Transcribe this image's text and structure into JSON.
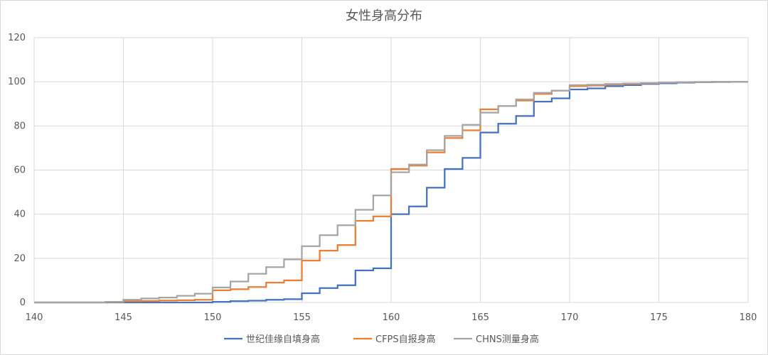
{
  "chart_data": {
    "type": "line",
    "title": "女性身高分布",
    "xlabel": "",
    "ylabel": "",
    "xlim": [
      140,
      180
    ],
    "ylim": [
      0,
      120
    ],
    "x_ticks": [
      140,
      145,
      150,
      155,
      160,
      165,
      170,
      175,
      180
    ],
    "y_ticks": [
      0,
      20,
      40,
      60,
      80,
      100,
      120
    ],
    "grid": true,
    "legend_position": "bottom",
    "step": true,
    "series": [
      {
        "name": "世纪佳缘自填身高",
        "color": "#4472c4",
        "x": [
          140,
          141,
          142,
          143,
          144,
          145,
          146,
          147,
          148,
          149,
          150,
          151,
          152,
          153,
          154,
          155,
          156,
          157,
          158,
          159,
          160,
          161,
          162,
          163,
          164,
          165,
          166,
          167,
          168,
          169,
          170,
          171,
          172,
          173,
          174,
          175,
          176,
          177,
          178,
          179,
          180
        ],
        "values": [
          0,
          0,
          0,
          0,
          0,
          0,
          0,
          0,
          0,
          0,
          0.3,
          0.6,
          0.8,
          1.2,
          1.5,
          4.2,
          6.5,
          7.8,
          14.5,
          15.5,
          40,
          43.5,
          52,
          60.5,
          65.5,
          77,
          81,
          84.5,
          91,
          92.5,
          96.5,
          97,
          98,
          98.5,
          99,
          99.3,
          99.6,
          99.8,
          99.9,
          100,
          100
        ]
      },
      {
        "name": "CFPS自报身高",
        "color": "#ed7d31",
        "x": [
          140,
          141,
          142,
          143,
          144,
          145,
          146,
          147,
          148,
          149,
          150,
          151,
          152,
          153,
          154,
          155,
          156,
          157,
          158,
          159,
          160,
          161,
          162,
          163,
          164,
          165,
          166,
          167,
          168,
          169,
          170,
          171,
          172,
          173,
          174,
          175,
          176,
          177,
          178,
          179,
          180
        ],
        "values": [
          0,
          0,
          0,
          0,
          0.2,
          0.6,
          0.7,
          0.9,
          1,
          1.2,
          5.5,
          6,
          7,
          9,
          10,
          19,
          23.5,
          26,
          37,
          39,
          60.5,
          62,
          68,
          74.5,
          78,
          87.5,
          89,
          91.5,
          94.5,
          96,
          98,
          98.3,
          98.7,
          99,
          99.3,
          99.6,
          99.8,
          99.9,
          100,
          100,
          100
        ]
      },
      {
        "name": "CHNS测量身高",
        "color": "#a5a5a5",
        "x": [
          140,
          141,
          142,
          143,
          144,
          145,
          146,
          147,
          148,
          149,
          150,
          151,
          152,
          153,
          154,
          155,
          156,
          157,
          158,
          159,
          160,
          161,
          162,
          163,
          164,
          165,
          166,
          167,
          168,
          169,
          170,
          171,
          172,
          173,
          174,
          175,
          176,
          177,
          178,
          179,
          180
        ],
        "values": [
          0,
          0,
          0,
          0,
          0.3,
          1.2,
          1.8,
          2.2,
          3,
          4,
          6.8,
          9.5,
          13,
          16,
          19.5,
          25.5,
          30.5,
          35,
          42,
          48.5,
          59,
          62.5,
          69,
          75.5,
          80.5,
          86,
          89,
          92,
          95,
          96,
          98.5,
          98.7,
          99,
          99.2,
          99.4,
          99.6,
          99.8,
          99.9,
          100,
          100,
          100
        ]
      }
    ]
  }
}
